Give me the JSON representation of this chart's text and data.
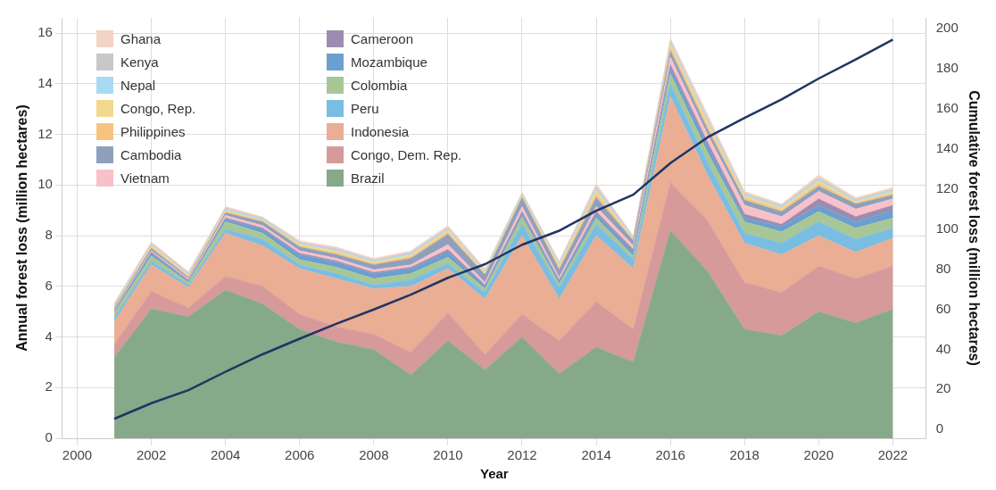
{
  "chart_data": {
    "type": "area",
    "xlabel": "Year",
    "ylabel": "Annual forest loss (million hectares)",
    "y2label": "Cumulative forest loss (million hectares)",
    "x": [
      2001,
      2002,
      2003,
      2004,
      2005,
      2006,
      2007,
      2008,
      2009,
      2010,
      2011,
      2012,
      2013,
      2014,
      2015,
      2016,
      2017,
      2018,
      2019,
      2020,
      2021,
      2022
    ],
    "stacked": true,
    "grid": true,
    "legend": "top left",
    "marker": "none",
    "xlim": [
      1999.6,
      2022.9
    ],
    "xticks": [
      2000,
      2002,
      2004,
      2006,
      2008,
      2010,
      2012,
      2014,
      2016,
      2018,
      2020,
      2022
    ],
    "ylim": [
      0,
      16.6
    ],
    "yticks": [
      0,
      2,
      4,
      6,
      8,
      10,
      12,
      14,
      16
    ],
    "y2lim": [
      -4.4,
      205.5
    ],
    "y2ticks": [
      0,
      20,
      40,
      60,
      80,
      100,
      120,
      140,
      160,
      180,
      200
    ],
    "series": [
      {
        "name": "Brazil",
        "color": "#86a98a",
        "values": [
          3.2,
          5.1,
          4.8,
          5.85,
          5.3,
          4.3,
          3.8,
          3.5,
          2.5,
          3.85,
          2.7,
          4.0,
          2.55,
          3.6,
          3.0,
          8.2,
          6.6,
          4.3,
          4.05,
          5.0,
          4.55,
          5.1
        ]
      },
      {
        "name": "Congo, Dem. Rep.",
        "color": "#d69a9b",
        "values": [
          0.5,
          0.7,
          0.35,
          0.55,
          0.7,
          0.6,
          0.6,
          0.6,
          0.9,
          1.1,
          0.6,
          0.9,
          1.3,
          1.8,
          1.3,
          1.9,
          2.0,
          1.85,
          1.7,
          1.8,
          1.75,
          1.7
        ]
      },
      {
        "name": "Indonesia",
        "color": "#e9ae93",
        "values": [
          0.9,
          1.05,
          0.8,
          1.7,
          1.6,
          1.8,
          1.9,
          1.8,
          2.6,
          1.75,
          2.2,
          3.1,
          1.65,
          2.6,
          2.4,
          3.4,
          1.8,
          1.55,
          1.5,
          1.2,
          1.05,
          1.1
        ]
      },
      {
        "name": "Peru",
        "color": "#79bde3",
        "values": [
          0.15,
          0.15,
          0.1,
          0.15,
          0.25,
          0.15,
          0.2,
          0.15,
          0.25,
          0.2,
          0.25,
          0.45,
          0.45,
          0.45,
          0.35,
          0.5,
          0.5,
          0.4,
          0.45,
          0.55,
          0.5,
          0.4
        ]
      },
      {
        "name": "Colombia",
        "color": "#a8c796",
        "values": [
          0.2,
          0.2,
          0.1,
          0.3,
          0.25,
          0.2,
          0.25,
          0.25,
          0.25,
          0.25,
          0.15,
          0.3,
          0.15,
          0.25,
          0.15,
          0.4,
          0.4,
          0.45,
          0.45,
          0.4,
          0.45,
          0.4
        ]
      },
      {
        "name": "Mozambique",
        "color": "#6b9fcf",
        "values": [
          0.05,
          0.1,
          0.05,
          0.1,
          0.15,
          0.2,
          0.2,
          0.2,
          0.2,
          0.2,
          0.1,
          0.1,
          0.1,
          0.15,
          0.15,
          0.2,
          0.25,
          0.15,
          0.2,
          0.25,
          0.25,
          0.3
        ]
      },
      {
        "name": "Cameroon",
        "color": "#9d8bb0",
        "values": [
          0.05,
          0.05,
          0.05,
          0.05,
          0.05,
          0.05,
          0.05,
          0.05,
          0.05,
          0.1,
          0.05,
          0.1,
          0.05,
          0.1,
          0.1,
          0.15,
          0.15,
          0.15,
          0.1,
          0.25,
          0.2,
          0.2
        ]
      },
      {
        "name": "Vietnam",
        "color": "#f7c1cb",
        "values": [
          0.05,
          0.05,
          0.05,
          0.1,
          0.1,
          0.1,
          0.1,
          0.1,
          0.1,
          0.2,
          0.1,
          0.2,
          0.1,
          0.2,
          0.15,
          0.3,
          0.3,
          0.35,
          0.3,
          0.3,
          0.3,
          0.25
        ]
      },
      {
        "name": "Cambodia",
        "color": "#8fa0bd",
        "values": [
          0.05,
          0.1,
          0.05,
          0.1,
          0.15,
          0.15,
          0.15,
          0.2,
          0.25,
          0.4,
          0.3,
          0.35,
          0.3,
          0.35,
          0.2,
          0.25,
          0.2,
          0.2,
          0.2,
          0.2,
          0.2,
          0.15
        ]
      },
      {
        "name": "Philippines",
        "color": "#f7c47f",
        "values": [
          0.04,
          0.06,
          0.05,
          0.05,
          0.04,
          0.05,
          0.07,
          0.05,
          0.07,
          0.09,
          0.05,
          0.05,
          0.09,
          0.15,
          0.04,
          0.15,
          0.15,
          0.09,
          0.07,
          0.11,
          0.05,
          0.07
        ]
      },
      {
        "name": "Congo, Rep.",
        "color": "#f2d88c",
        "values": [
          0.03,
          0.05,
          0.04,
          0.05,
          0.03,
          0.05,
          0.06,
          0.05,
          0.06,
          0.07,
          0.05,
          0.04,
          0.07,
          0.12,
          0.03,
          0.1,
          0.12,
          0.07,
          0.06,
          0.1,
          0.05,
          0.06
        ]
      },
      {
        "name": "Nepal",
        "color": "#a7dbf2",
        "values": [
          0.04,
          0.04,
          0.04,
          0.04,
          0.04,
          0.04,
          0.05,
          0.04,
          0.05,
          0.05,
          0.04,
          0.04,
          0.05,
          0.08,
          0.04,
          0.06,
          0.08,
          0.05,
          0.05,
          0.06,
          0.04,
          0.05
        ]
      },
      {
        "name": "Kenya",
        "color": "#c8c8c8",
        "values": [
          0.04,
          0.04,
          0.04,
          0.04,
          0.04,
          0.04,
          0.05,
          0.04,
          0.05,
          0.05,
          0.04,
          0.04,
          0.05,
          0.08,
          0.04,
          0.06,
          0.08,
          0.05,
          0.05,
          0.06,
          0.04,
          0.05
        ]
      },
      {
        "name": "Ghana",
        "color": "#f2d3c4",
        "values": [
          0.04,
          0.06,
          0.05,
          0.07,
          0.04,
          0.07,
          0.07,
          0.07,
          0.07,
          0.09,
          0.07,
          0.05,
          0.09,
          0.12,
          0.04,
          0.13,
          0.17,
          0.09,
          0.07,
          0.12,
          0.07,
          0.07
        ]
      },
      {
        "type": "line",
        "axis": "y2",
        "color": "#1f3563",
        "values": [
          5.3,
          13.1,
          19.6,
          28.8,
          37.5,
          45.3,
          52.8,
          59.9,
          67.3,
          75.7,
          82.5,
          92.2,
          99.2,
          109.2,
          117.2,
          133.0,
          145.8,
          155.5,
          164.8,
          175.2,
          184.7,
          194.6
        ]
      }
    ]
  }
}
